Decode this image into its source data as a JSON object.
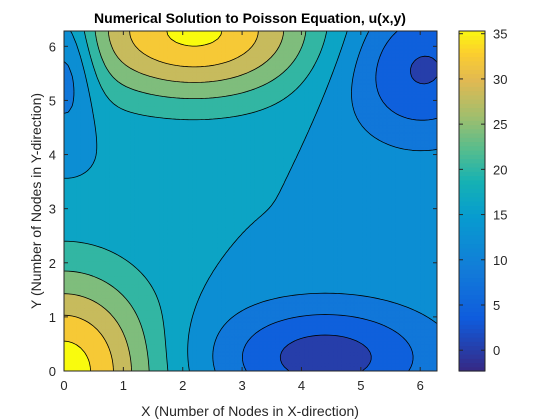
{
  "chart_data": {
    "type": "contour",
    "title": "Numerical Solution to Poisson Equation, u(x,y)",
    "xlabel": "X (Number of Nodes in X-direction)",
    "ylabel": "Y (Number of Nodes in Y-direction)",
    "xlim": [
      0,
      6.2832
    ],
    "ylim": [
      0,
      6.2832
    ],
    "xticks": [
      0,
      1,
      2,
      3,
      4,
      5,
      6
    ],
    "yticks": [
      0,
      1,
      2,
      3,
      4,
      5,
      6
    ],
    "colorbar": {
      "ticks": [
        0,
        5,
        10,
        15,
        20,
        25,
        30,
        35
      ],
      "range": [
        -2.3,
        35.3
      ]
    },
    "colormap": "parula",
    "levels": [
      -2,
      2,
      6,
      10,
      14,
      18,
      22,
      26,
      30,
      34
    ],
    "features": [
      {
        "label": "maximum near top edge",
        "x": 2.2,
        "y": 6.2832,
        "value": 35
      },
      {
        "label": "maximum near bottom-left corner",
        "x": 0,
        "y": 0,
        "value": 35
      },
      {
        "label": "minimum near bottom",
        "x": 4.4,
        "y": 0.25,
        "value": -2
      },
      {
        "label": "minimum near top-right",
        "x": 6.0,
        "y": 5.6,
        "value": -2
      },
      {
        "label": "minimum near top-left",
        "x": 0.05,
        "y": 5.7,
        "value": 3
      },
      {
        "label": "saddle plateau",
        "x": 2.3,
        "y": 3.6,
        "value": 15
      }
    ]
  }
}
